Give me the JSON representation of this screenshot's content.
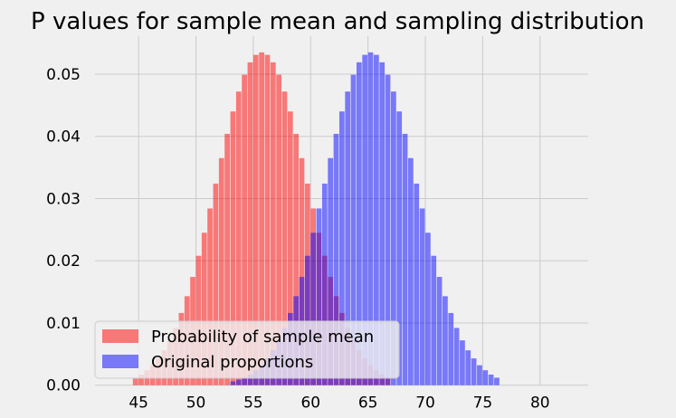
{
  "chart_data": {
    "type": "bar",
    "title": "P values for sample mean and sampling distribution",
    "xlabel": "",
    "ylabel": "",
    "xlim": [
      41.2,
      84.2
    ],
    "ylim": [
      0,
      0.0561
    ],
    "grid": true,
    "legend_position": "lower-left",
    "x_ticks": [
      45,
      50,
      55,
      60,
      65,
      70,
      75,
      80
    ],
    "y_ticks": [
      "0.00",
      "0.01",
      "0.02",
      "0.03",
      "0.04",
      "0.05"
    ],
    "y_tick_values": [
      0,
      0.01,
      0.02,
      0.03,
      0.04,
      0.05
    ],
    "bar_width": 0.5,
    "series": [
      {
        "name": "Probability of sample mean",
        "color": "#ff0000",
        "alpha": 0.5,
        "x_start": 44.75,
        "x_step": 0.5,
        "values": [
          0.0012,
          0.0017,
          0.0024,
          0.0032,
          0.0043,
          0.0056,
          0.0072,
          0.0092,
          0.0116,
          0.0143,
          0.0174,
          0.0208,
          0.0245,
          0.0284,
          0.0324,
          0.0365,
          0.0404,
          0.044,
          0.0472,
          0.0499,
          0.0519,
          0.0531,
          0.0535,
          0.0531,
          0.0519,
          0.0499,
          0.0472,
          0.044,
          0.0404,
          0.0365,
          0.0324,
          0.0284,
          0.0245,
          0.0208,
          0.0174,
          0.0143,
          0.0116,
          0.0092,
          0.0072,
          0.0056,
          0.0043,
          0.0032,
          0.0024,
          0.0017,
          0.0012
        ]
      },
      {
        "name": "Original proportions",
        "color": "#0000ff",
        "alpha": 0.5,
        "x_start": 53.25,
        "x_step": 0.5,
        "values": [
          0.0006,
          0.0009,
          0.0012,
          0.0017,
          0.0024,
          0.0032,
          0.0043,
          0.0056,
          0.0072,
          0.0092,
          0.0116,
          0.0143,
          0.0174,
          0.0208,
          0.0245,
          0.0284,
          0.0324,
          0.0365,
          0.0404,
          0.044,
          0.0472,
          0.0499,
          0.0519,
          0.0531,
          0.0535,
          0.0531,
          0.0519,
          0.0499,
          0.0472,
          0.044,
          0.0404,
          0.0365,
          0.0324,
          0.0284,
          0.0245,
          0.0208,
          0.0174,
          0.0143,
          0.0116,
          0.0092,
          0.0072,
          0.0056,
          0.0043,
          0.0032,
          0.0024,
          0.0017,
          0.0012
        ]
      }
    ]
  }
}
